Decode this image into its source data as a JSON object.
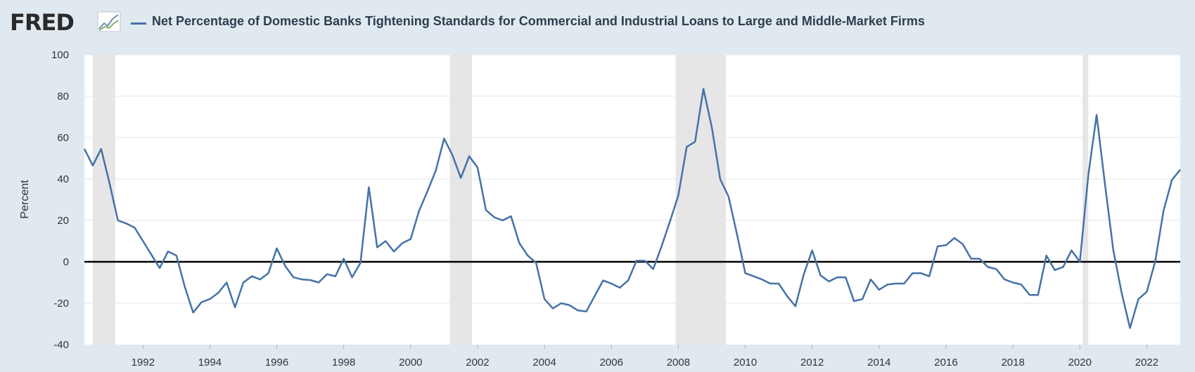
{
  "header": {
    "logo_text": "FRED",
    "logo_icon": "line-chart-icon",
    "series_title": "Net Percentage of Domestic Banks Tightening Standards for Commercial and Industrial Loans to Large and Middle-Market Firms",
    "series_color": "#4572a7"
  },
  "chart_data": {
    "type": "line",
    "title": "Net Percentage of Domestic Banks Tightening Standards for Commercial and Industrial Loans to Large and Middle-Market Firms",
    "ylabel": "Percent",
    "xlabel": "",
    "ylim": [
      -40,
      100
    ],
    "xlim": [
      1990.25,
      2023.0
    ],
    "yticks": [
      -40,
      -20,
      0,
      20,
      40,
      60,
      80,
      100
    ],
    "xticks": [
      1992,
      1994,
      1996,
      1998,
      2000,
      2002,
      2004,
      2006,
      2008,
      2010,
      2012,
      2014,
      2016,
      2018,
      2020,
      2022
    ],
    "grid": true,
    "legend": "top-left",
    "recessions": [
      [
        1990.5,
        1991.17
      ],
      [
        2001.17,
        2001.83
      ],
      [
        2007.92,
        2009.42
      ],
      [
        2020.08,
        2020.25
      ]
    ],
    "series": [
      {
        "name": "Net Percentage of Domestic Banks Tightening Standards for Commercial and Industrial Loans to Large and Middle-Market Firms",
        "color": "#4572a7",
        "points": [
          [
            1990.25,
            54.5
          ],
          [
            1990.5,
            46.5
          ],
          [
            1990.75,
            54.5
          ],
          [
            1991.0,
            38.0
          ],
          [
            1991.25,
            20.0
          ],
          [
            1991.5,
            18.5
          ],
          [
            1991.75,
            16.5
          ],
          [
            1992.0,
            10.0
          ],
          [
            1992.25,
            3.5
          ],
          [
            1992.5,
            -3.0
          ],
          [
            1992.75,
            5.0
          ],
          [
            1993.0,
            3.0
          ],
          [
            1993.25,
            -12.0
          ],
          [
            1993.5,
            -24.5
          ],
          [
            1993.75,
            -19.5
          ],
          [
            1994.0,
            -18.0
          ],
          [
            1994.25,
            -15.0
          ],
          [
            1994.5,
            -10.0
          ],
          [
            1994.75,
            -22.0
          ],
          [
            1995.0,
            -10.0
          ],
          [
            1995.25,
            -7.0
          ],
          [
            1995.5,
            -8.5
          ],
          [
            1995.75,
            -5.5
          ],
          [
            1996.0,
            6.5
          ],
          [
            1996.25,
            -2.0
          ],
          [
            1996.5,
            -7.5
          ],
          [
            1996.75,
            -8.5
          ],
          [
            1997.0,
            -8.8
          ],
          [
            1997.25,
            -10.0
          ],
          [
            1997.5,
            -6.0
          ],
          [
            1997.75,
            -7.0
          ],
          [
            1998.0,
            1.5
          ],
          [
            1998.25,
            -7.5
          ],
          [
            1998.5,
            -0.5
          ],
          [
            1998.75,
            36.0
          ],
          [
            1999.0,
            7.0
          ],
          [
            1999.25,
            10.0
          ],
          [
            1999.5,
            5.0
          ],
          [
            1999.75,
            9.0
          ],
          [
            2000.0,
            11.0
          ],
          [
            2000.25,
            24.5
          ],
          [
            2000.5,
            34.0
          ],
          [
            2000.75,
            44.0
          ],
          [
            2001.0,
            59.5
          ],
          [
            2001.25,
            51.5
          ],
          [
            2001.5,
            40.5
          ],
          [
            2001.75,
            51.0
          ],
          [
            2002.0,
            45.5
          ],
          [
            2002.25,
            25.0
          ],
          [
            2002.5,
            21.5
          ],
          [
            2002.75,
            20.0
          ],
          [
            2003.0,
            22.0
          ],
          [
            2003.25,
            9.0
          ],
          [
            2003.5,
            3.0
          ],
          [
            2003.75,
            -0.5
          ],
          [
            2004.0,
            -18.0
          ],
          [
            2004.25,
            -22.5
          ],
          [
            2004.5,
            -20.0
          ],
          [
            2004.75,
            -21.0
          ],
          [
            2005.0,
            -23.5
          ],
          [
            2005.25,
            -24.0
          ],
          [
            2005.5,
            -16.5
          ],
          [
            2005.75,
            -9.0
          ],
          [
            2006.0,
            -10.5
          ],
          [
            2006.25,
            -12.5
          ],
          [
            2006.5,
            -9.0
          ],
          [
            2006.75,
            0.5
          ],
          [
            2007.0,
            0.5
          ],
          [
            2007.25,
            -3.5
          ],
          [
            2007.5,
            7.5
          ],
          [
            2007.75,
            19.5
          ],
          [
            2008.0,
            32.0
          ],
          [
            2008.25,
            55.5
          ],
          [
            2008.5,
            58.0
          ],
          [
            2008.75,
            83.5
          ],
          [
            2009.0,
            65.0
          ],
          [
            2009.25,
            40.0
          ],
          [
            2009.5,
            31.5
          ],
          [
            2009.75,
            13.5
          ],
          [
            2010.0,
            -5.5
          ],
          [
            2010.25,
            -7.0
          ],
          [
            2010.5,
            -8.5
          ],
          [
            2010.75,
            -10.5
          ],
          [
            2011.0,
            -10.5
          ],
          [
            2011.25,
            -16.5
          ],
          [
            2011.5,
            -21.5
          ],
          [
            2011.75,
            -6.0
          ],
          [
            2012.0,
            5.5
          ],
          [
            2012.25,
            -6.5
          ],
          [
            2012.5,
            -9.5
          ],
          [
            2012.75,
            -7.5
          ],
          [
            2013.0,
            -7.5
          ],
          [
            2013.25,
            -19.0
          ],
          [
            2013.5,
            -18.0
          ],
          [
            2013.75,
            -8.5
          ],
          [
            2014.0,
            -13.5
          ],
          [
            2014.25,
            -11.0
          ],
          [
            2014.5,
            -10.5
          ],
          [
            2014.75,
            -10.5
          ],
          [
            2015.0,
            -5.5
          ],
          [
            2015.25,
            -5.5
          ],
          [
            2015.5,
            -7.0
          ],
          [
            2015.75,
            7.5
          ],
          [
            2016.0,
            8.0
          ],
          [
            2016.25,
            11.5
          ],
          [
            2016.5,
            8.5
          ],
          [
            2016.75,
            1.5
          ],
          [
            2017.0,
            1.5
          ],
          [
            2017.25,
            -2.5
          ],
          [
            2017.5,
            -3.5
          ],
          [
            2017.75,
            -8.5
          ],
          [
            2018.0,
            -10.0
          ],
          [
            2018.25,
            -11.0
          ],
          [
            2018.5,
            -16.0
          ],
          [
            2018.75,
            -16.0
          ],
          [
            2019.0,
            3.0
          ],
          [
            2019.25,
            -4.0
          ],
          [
            2019.5,
            -2.5
          ],
          [
            2019.75,
            5.5
          ],
          [
            2020.0,
            0.0
          ],
          [
            2020.25,
            41.5
          ],
          [
            2020.5,
            71.0
          ],
          [
            2020.75,
            37.5
          ],
          [
            2021.0,
            5.5
          ],
          [
            2021.25,
            -15.0
          ],
          [
            2021.5,
            -32.0
          ],
          [
            2021.75,
            -18.0
          ],
          [
            2022.0,
            -14.5
          ],
          [
            2022.25,
            0.0
          ],
          [
            2022.5,
            24.5
          ],
          [
            2022.75,
            39.5
          ],
          [
            2023.0,
            44.5
          ]
        ]
      }
    ]
  }
}
